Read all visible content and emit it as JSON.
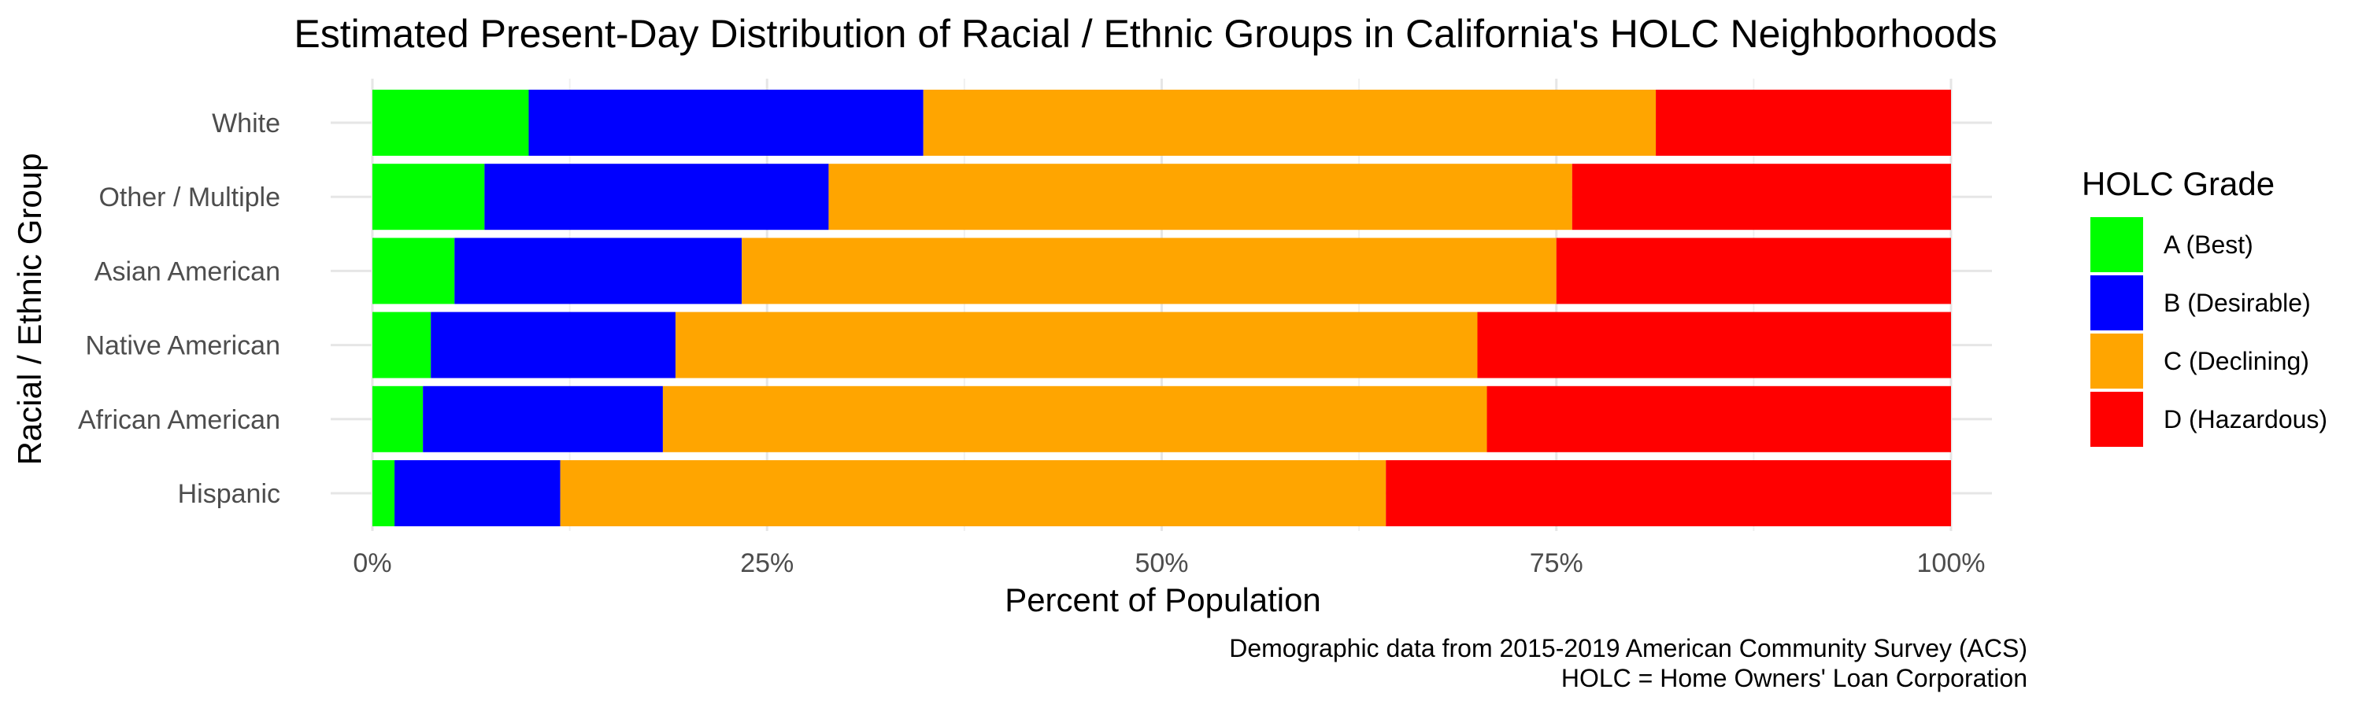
{
  "chart_data": {
    "type": "bar",
    "orientation": "horizontal",
    "stacked": "percent",
    "title": "Estimated Present-Day Distribution of Racial / Ethnic Groups in California's HOLC Neighborhoods",
    "xlabel": "Percent of Population",
    "ylabel": "Racial / Ethnic Group",
    "xlim": [
      0,
      100
    ],
    "x_ticks": [
      "0%",
      "25%",
      "50%",
      "75%",
      "100%"
    ],
    "x_tick_values": [
      0,
      25,
      50,
      75,
      100
    ],
    "categories": [
      "White",
      "Other / Multiple",
      "Asian American",
      "Native American",
      "African American",
      "Hispanic"
    ],
    "legend_title": "HOLC Grade",
    "legend_position": "right",
    "grid": true,
    "series": [
      {
        "name": "A (Best)",
        "color": "#00ff00",
        "values": [
          9.9,
          7.1,
          5.2,
          3.7,
          3.2,
          1.4
        ]
      },
      {
        "name": "B (Desirable)",
        "color": "#0000ff",
        "values": [
          25.0,
          21.8,
          18.2,
          15.5,
          15.2,
          10.5
        ]
      },
      {
        "name": "C (Declining)",
        "color": "#ffa500",
        "values": [
          46.4,
          47.1,
          51.6,
          50.8,
          52.2,
          52.3
        ]
      },
      {
        "name": "D (Hazardous)",
        "color": "#ff0000",
        "values": [
          18.7,
          24.0,
          25.0,
          30.0,
          29.4,
          35.8
        ]
      }
    ],
    "caption": [
      "Demographic data from 2015-2019 American Community Survey (ACS)",
      "HOLC = Home Owners' Loan Corporation"
    ]
  }
}
